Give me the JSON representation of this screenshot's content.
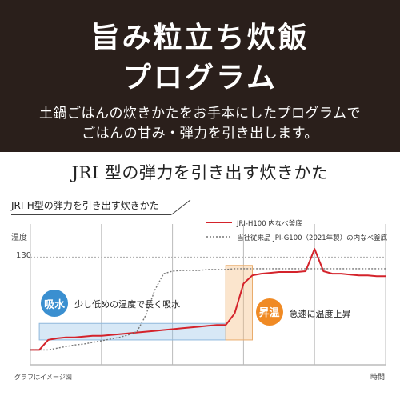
{
  "header": {
    "title_line1": "旨み粒立ち炊飯",
    "title_line2": "プログラム",
    "subtitle_line1": "土鍋ごはんの炊きかたをお手本にしたプログラムで",
    "subtitle_line2": "ごはんの甘み・弾力を引き出します。"
  },
  "section_heading": "JRI 型の弾力を引き出す炊きかた",
  "chart_data": {
    "type": "line",
    "title": "JRI-H型の弾力を引き出す炊きかた",
    "ylabel": "温度",
    "xlabel": "時間",
    "note": "グラフはイメージ図",
    "y_ticks": [
      "130"
    ],
    "grid": true,
    "legend_position": "top-right",
    "x": [
      0,
      1,
      2,
      3,
      4,
      5,
      6,
      7,
      8,
      9,
      10,
      11,
      12,
      13,
      14,
      15,
      16,
      17,
      18,
      19,
      20,
      21,
      22,
      23,
      24,
      25,
      26,
      27,
      28,
      29,
      30,
      31,
      32,
      33,
      34,
      35,
      36,
      37,
      38,
      39,
      40
    ],
    "series": [
      {
        "name": "JRI-H100 内なべ釜底",
        "color": "#d4232b",
        "style": "solid",
        "values": [
          18,
          18,
          30,
          32,
          33,
          33,
          34,
          35,
          35,
          36,
          37,
          38,
          39,
          40,
          41,
          42,
          43,
          44,
          45,
          46,
          47,
          48,
          48,
          62,
          98,
          108,
          110,
          111,
          112,
          112,
          112,
          113,
          140,
          113,
          110,
          110,
          109,
          108,
          108,
          107,
          107
        ]
      },
      {
        "name": "当社従来品 JPI-G100（2021年製）の内なべ釜底",
        "color": "#777777",
        "style": "dotted",
        "values": [
          18,
          18,
          18,
          20,
          22,
          24,
          25,
          27,
          29,
          31,
          33,
          36,
          40,
          60,
          90,
          110,
          113,
          114,
          114,
          114,
          115,
          115,
          115,
          116,
          116,
          116,
          116,
          116,
          116,
          116,
          116,
          116,
          116,
          116,
          116,
          116,
          116,
          116,
          116,
          116,
          116
        ]
      }
    ],
    "phases": [
      {
        "label": "吸水",
        "description": "少し低めの温度で長く吸水",
        "color": "#3a8fd0",
        "x_start": 1,
        "x_end": 22,
        "y_low": 30,
        "y_high": 50
      },
      {
        "label": "昇温",
        "description": "急速に温度上昇",
        "color": "#f08a24",
        "x_start": 22,
        "x_end": 25,
        "y_low": 30,
        "y_high": 120
      }
    ],
    "xlim": [
      0,
      40
    ],
    "ylim": [
      0,
      170
    ]
  }
}
